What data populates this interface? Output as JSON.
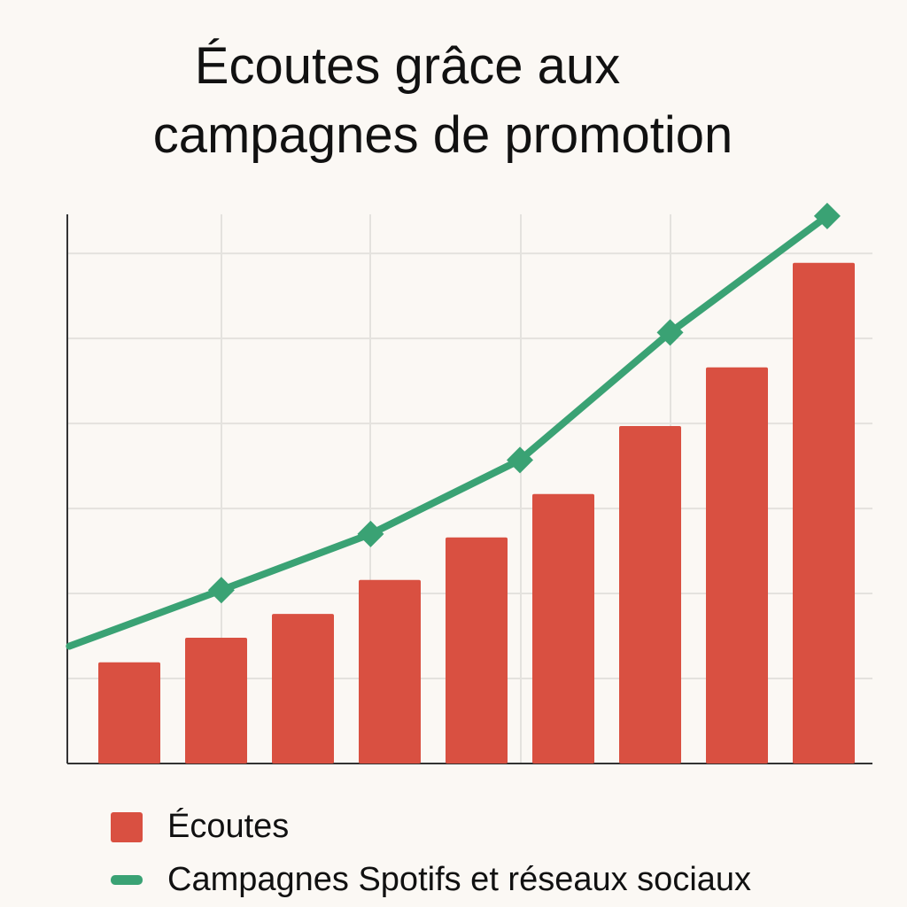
{
  "chart_data": {
    "type": "bar",
    "title_lines": [
      "Écoutes grâce aux",
      "campagnes de promotion"
    ],
    "xlabel": "",
    "ylabel": "",
    "ylim": [
      0,
      6.46
    ],
    "grid": true,
    "legend_position": "bottom-left",
    "colors": {
      "bars": "#d95041",
      "line": "#3aa274",
      "background": "#fbf8f4",
      "grid": "#e4e2de"
    },
    "series": [
      {
        "name": "Écoutes",
        "type": "bar",
        "values": [
          1.19,
          1.48,
          1.76,
          2.16,
          2.66,
          3.17,
          3.97,
          4.66,
          5.89
        ]
      },
      {
        "name": "Campagnes Spotifs et réseaux sociaux",
        "type": "line",
        "x": [
          -0.69,
          1.06,
          2.78,
          4.5,
          6.23,
          8.04
        ],
        "values": [
          1.38,
          2.04,
          2.7,
          3.57,
          5.07,
          6.44
        ],
        "markers": [
          false,
          true,
          true,
          true,
          true,
          true
        ]
      }
    ]
  }
}
